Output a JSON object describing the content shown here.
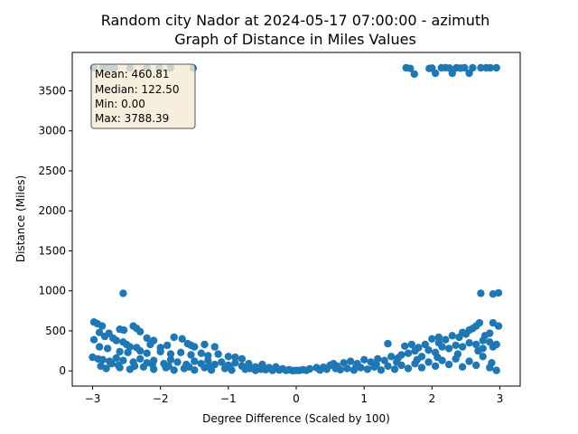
{
  "chart_data": {
    "type": "scatter",
    "title_line1": "Random city Nador at 2024-05-17 07:00:00  - azimuth",
    "title_line2": "Graph of Distance in Miles Values",
    "xlabel": "Degree Difference (Scaled by 100)",
    "ylabel": "Distance (Miles)",
    "xlim": [
      -3.3,
      3.3
    ],
    "ylim": [
      -190,
      3980
    ],
    "x_ticks": [
      -3,
      -2,
      -1,
      0,
      1,
      2,
      3
    ],
    "x_tick_labels": [
      "−3",
      "−2",
      "−1",
      "0",
      "1",
      "2",
      "3"
    ],
    "y_ticks": [
      0,
      500,
      1000,
      1500,
      2000,
      2500,
      3000,
      3500
    ],
    "y_tick_labels": [
      "0",
      "500",
      "1000",
      "1500",
      "2000",
      "2500",
      "3000",
      "3500"
    ],
    "marker_color": "#1f77b4",
    "grid": false,
    "stats": {
      "mean": "Mean: 460.81",
      "median": "Median: 122.50",
      "min": "Min: 0.00",
      "max": "Max: 3788.39"
    },
    "stats_box_fill": "#f6ead6",
    "points": [
      [
        -2.98,
        3788
      ],
      [
        -2.85,
        3788
      ],
      [
        -2.8,
        3790
      ],
      [
        -2.76,
        3788
      ],
      [
        -2.72,
        3788
      ],
      [
        -2.68,
        3786
      ],
      [
        -2.45,
        3785
      ],
      [
        -2.2,
        3788
      ],
      [
        -2.02,
        3786
      ],
      [
        -1.85,
        3788
      ],
      [
        -1.52,
        3786
      ],
      [
        1.62,
        3788
      ],
      [
        1.68,
        3780
      ],
      [
        1.74,
        3710
      ],
      [
        1.96,
        3780
      ],
      [
        2.0,
        3785
      ],
      [
        2.05,
        3720
      ],
      [
        2.14,
        3788
      ],
      [
        2.2,
        3790
      ],
      [
        2.26,
        3785
      ],
      [
        2.3,
        3720
      ],
      [
        2.36,
        3788
      ],
      [
        2.42,
        3784
      ],
      [
        2.48,
        3788
      ],
      [
        2.55,
        3720
      ],
      [
        2.6,
        3788
      ],
      [
        2.72,
        3788
      ],
      [
        2.8,
        3788
      ],
      [
        2.86,
        3788
      ],
      [
        2.95,
        3788
      ],
      [
        -2.55,
        970
      ],
      [
        2.72,
        970
      ],
      [
        2.9,
        960
      ],
      [
        2.98,
        975
      ],
      [
        -2.98,
        610
      ],
      [
        -2.93,
        590
      ],
      [
        -2.86,
        560
      ],
      [
        -2.6,
        520
      ],
      [
        -2.54,
        510
      ],
      [
        -2.4,
        560
      ],
      [
        -2.35,
        530
      ],
      [
        -2.3,
        490
      ],
      [
        -2.76,
        470
      ],
      [
        -2.9,
        480
      ],
      [
        -2.82,
        430
      ],
      [
        -2.7,
        410
      ],
      [
        -2.65,
        380
      ],
      [
        -2.98,
        390
      ],
      [
        -2.2,
        410
      ],
      [
        -2.1,
        380
      ],
      [
        -1.8,
        420
      ],
      [
        -1.68,
        400
      ],
      [
        -2.55,
        360
      ],
      [
        -2.5,
        330
      ],
      [
        -2.45,
        300
      ],
      [
        -2.35,
        290
      ],
      [
        -2.15,
        330
      ],
      [
        -2.0,
        290
      ],
      [
        -1.9,
        320
      ],
      [
        -1.6,
        340
      ],
      [
        -1.55,
        320
      ],
      [
        -1.5,
        300
      ],
      [
        -1.35,
        330
      ],
      [
        -1.2,
        300
      ],
      [
        -2.9,
        300
      ],
      [
        -2.78,
        280
      ],
      [
        -2.6,
        240
      ],
      [
        -2.48,
        230
      ],
      [
        -2.3,
        250
      ],
      [
        -2.2,
        220
      ],
      [
        -2.0,
        240
      ],
      [
        -1.85,
        210
      ],
      [
        -1.7,
        230
      ],
      [
        -1.55,
        200
      ],
      [
        -1.4,
        220
      ],
      [
        -1.3,
        190
      ],
      [
        -1.15,
        210
      ],
      [
        -1.0,
        180
      ],
      [
        -0.9,
        170
      ],
      [
        -0.8,
        150
      ],
      [
        -3.0,
        170
      ],
      [
        -2.92,
        150
      ],
      [
        -2.85,
        140
      ],
      [
        -2.75,
        120
      ],
      [
        -2.65,
        160
      ],
      [
        -2.55,
        130
      ],
      [
        -2.4,
        110
      ],
      [
        -2.3,
        150
      ],
      [
        -2.2,
        100
      ],
      [
        -2.1,
        130
      ],
      [
        -1.95,
        90
      ],
      [
        -1.85,
        140
      ],
      [
        -1.75,
        110
      ],
      [
        -1.62,
        80
      ],
      [
        -1.5,
        120
      ],
      [
        -1.4,
        90
      ],
      [
        -1.3,
        130
      ],
      [
        -1.2,
        80
      ],
      [
        -1.1,
        110
      ],
      [
        -1.0,
        70
      ],
      [
        -0.9,
        100
      ],
      [
        -0.8,
        60
      ],
      [
        -0.7,
        90
      ],
      [
        -0.6,
        50
      ],
      [
        -0.5,
        80
      ],
      [
        -0.4,
        40
      ],
      [
        -0.3,
        50
      ],
      [
        -0.2,
        25
      ],
      [
        -0.1,
        15
      ],
      [
        0.0,
        5
      ],
      [
        -2.88,
        60
      ],
      [
        -2.8,
        30
      ],
      [
        -2.6,
        40
      ],
      [
        -2.45,
        20
      ],
      [
        -2.25,
        50
      ],
      [
        -2.1,
        20
      ],
      [
        -1.92,
        40
      ],
      [
        -1.8,
        10
      ],
      [
        -1.65,
        30
      ],
      [
        -1.5,
        10
      ],
      [
        -1.35,
        40
      ],
      [
        -1.25,
        10
      ],
      [
        -1.05,
        30
      ],
      [
        -0.95,
        10
      ],
      [
        -0.75,
        20
      ],
      [
        -0.6,
        5
      ],
      [
        -0.45,
        15
      ],
      [
        -0.35,
        5
      ],
      [
        -0.25,
        10
      ],
      [
        -0.15,
        5
      ],
      [
        -0.05,
        2
      ],
      [
        0.05,
        5
      ],
      [
        0.1,
        15
      ],
      [
        0.2,
        25
      ],
      [
        0.3,
        40
      ],
      [
        0.4,
        45
      ],
      [
        0.5,
        70
      ],
      [
        0.55,
        90
      ],
      [
        0.6,
        60
      ],
      [
        0.7,
        100
      ],
      [
        0.8,
        120
      ],
      [
        0.9,
        90
      ],
      [
        1.0,
        140
      ],
      [
        1.1,
        110
      ],
      [
        1.2,
        150
      ],
      [
        1.3,
        130
      ],
      [
        1.4,
        180
      ],
      [
        1.5,
        160
      ],
      [
        1.55,
        200
      ],
      [
        1.65,
        220
      ],
      [
        1.75,
        250
      ],
      [
        1.85,
        180
      ],
      [
        1.95,
        260
      ],
      [
        2.05,
        230
      ],
      [
        2.15,
        300
      ],
      [
        2.25,
        280
      ],
      [
        2.35,
        320
      ],
      [
        2.45,
        300
      ],
      [
        2.55,
        350
      ],
      [
        2.65,
        330
      ],
      [
        2.75,
        380
      ],
      [
        2.85,
        360
      ],
      [
        2.95,
        330
      ],
      [
        0.15,
        5
      ],
      [
        0.35,
        10
      ],
      [
        0.45,
        20
      ],
      [
        0.65,
        15
      ],
      [
        0.75,
        30
      ],
      [
        0.85,
        10
      ],
      [
        0.95,
        40
      ],
      [
        1.05,
        20
      ],
      [
        1.15,
        50
      ],
      [
        1.25,
        10
      ],
      [
        1.35,
        60
      ],
      [
        1.45,
        20
      ],
      [
        1.55,
        70
      ],
      [
        1.65,
        30
      ],
      [
        1.75,
        90
      ],
      [
        1.85,
        40
      ],
      [
        1.95,
        110
      ],
      [
        2.05,
        60
      ],
      [
        2.15,
        130
      ],
      [
        2.25,
        80
      ],
      [
        2.35,
        150
      ],
      [
        2.45,
        50
      ],
      [
        2.55,
        120
      ],
      [
        2.65,
        70
      ],
      [
        2.75,
        180
      ],
      [
        2.85,
        40
      ],
      [
        2.95,
        5
      ],
      [
        2.88,
        100
      ],
      [
        1.35,
        340
      ],
      [
        1.6,
        310
      ],
      [
        1.7,
        330
      ],
      [
        1.8,
        290
      ],
      [
        2.0,
        400
      ],
      [
        2.1,
        420
      ],
      [
        2.2,
        390
      ],
      [
        2.3,
        440
      ],
      [
        2.4,
        420
      ],
      [
        2.5,
        460
      ],
      [
        2.6,
        530
      ],
      [
        2.65,
        560
      ],
      [
        2.7,
        600
      ],
      [
        2.78,
        440
      ],
      [
        2.85,
        470
      ],
      [
        2.9,
        600
      ],
      [
        2.98,
        560
      ],
      [
        2.55,
        510
      ],
      [
        2.45,
        480
      ],
      [
        2.1,
        350
      ],
      [
        1.9,
        330
      ],
      [
        2.75,
        280
      ],
      [
        2.9,
        300
      ],
      [
        -2.72,
        90
      ],
      [
        -2.62,
        70
      ],
      [
        -2.38,
        60
      ],
      [
        -2.12,
        80
      ],
      [
        -1.88,
        60
      ],
      [
        -1.58,
        50
      ],
      [
        -1.28,
        60
      ],
      [
        -0.98,
        40
      ],
      [
        -0.68,
        30
      ],
      [
        -0.52,
        20
      ],
      [
        0.58,
        30
      ],
      [
        0.88,
        50
      ],
      [
        1.18,
        80
      ],
      [
        1.48,
        110
      ],
      [
        1.78,
        140
      ],
      [
        2.08,
        170
      ],
      [
        2.38,
        210
      ],
      [
        2.68,
        250
      ]
    ]
  }
}
